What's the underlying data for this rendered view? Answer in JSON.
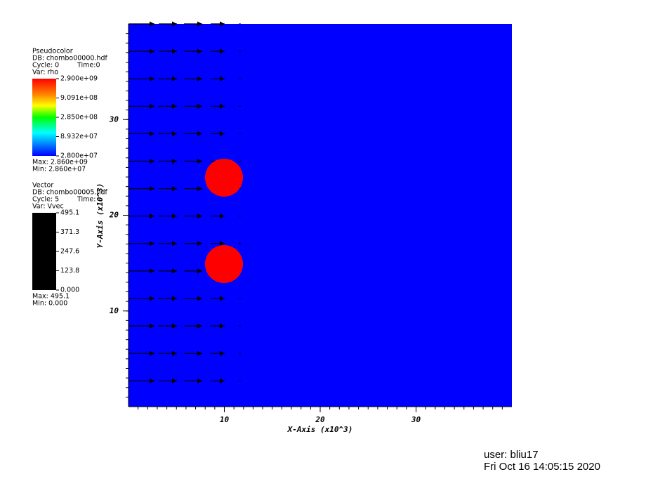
{
  "legends": [
    {
      "title": "Pseudocolor",
      "db": "DB: chombo00000.hdf",
      "cycle": "Cycle: 0",
      "time": "Time:0",
      "var": "Var: rho",
      "labels": [
        "2.900e+09",
        "9.091e+08",
        "2.850e+08",
        "8.932e+07",
        "2.800e+07"
      ],
      "max": "Max:  2.860e+09",
      "min": "Min:  2.860e+07"
    },
    {
      "title": "Vector",
      "db": "DB: chombo00005.hdf",
      "cycle": "Cycle: 5",
      "time": "Time:",
      "var": "Var: Vvec",
      "labels": [
        "495.1",
        "371.3",
        "247.6",
        "123.8",
        "0.000"
      ],
      "max": "Max:  495.1",
      "min": "Min:  0.000"
    }
  ],
  "plot": {
    "xlabel": "X-Axis (x10^3)",
    "ylabel": "Y-Axis (x10^3)",
    "xlim": [
      0,
      40
    ],
    "ylim": [
      0,
      40
    ],
    "xticks": [
      10,
      20,
      30
    ],
    "yticks": [
      10,
      20,
      30
    ]
  },
  "footer": {
    "user": "user: bliu17",
    "date": "Fri Oct 16 14:05:15 2020"
  }
}
